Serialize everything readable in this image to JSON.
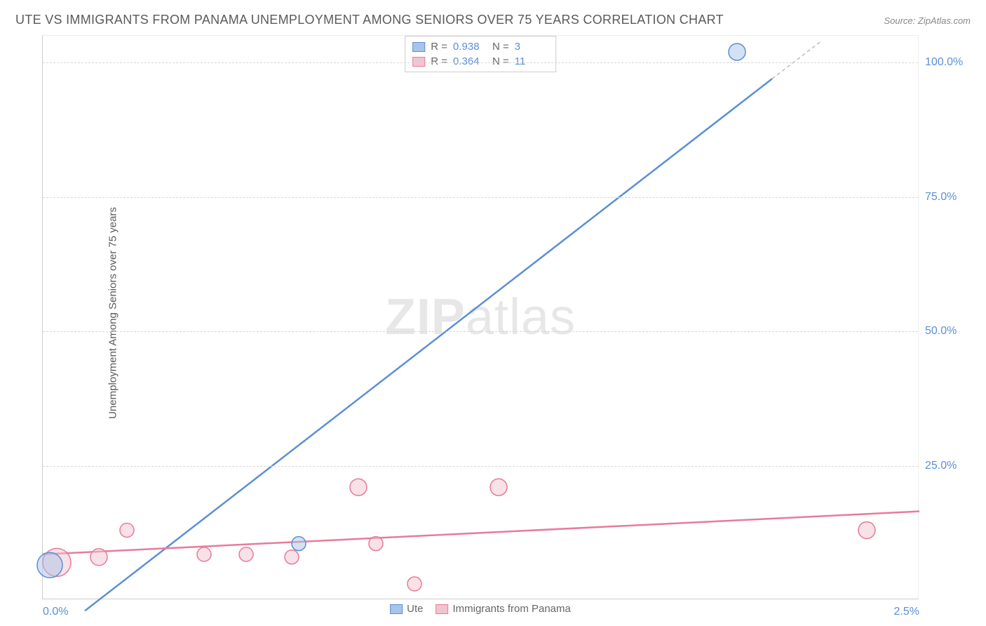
{
  "title": "UTE VS IMMIGRANTS FROM PANAMA UNEMPLOYMENT AMONG SENIORS OVER 75 YEARS CORRELATION CHART",
  "source": "Source: ZipAtlas.com",
  "ylabel": "Unemployment Among Seniors over 75 years",
  "watermark_bold": "ZIP",
  "watermark_rest": "atlas",
  "chart": {
    "type": "scatter",
    "xlim": [
      0.0,
      2.5
    ],
    "ylim": [
      0,
      105
    ],
    "ytick_step": 25,
    "ytick_labels": [
      "25.0%",
      "50.0%",
      "75.0%",
      "100.0%"
    ],
    "xtick_labels": [
      "0.0%",
      "2.5%"
    ],
    "grid_color": "#d8d8d8",
    "background_color": "#ffffff",
    "axis_color": "#cccccc",
    "tick_font_color": "#5b8fd6",
    "series": [
      {
        "name": "Ute",
        "fill": "#a9c4ea",
        "stroke": "#5b8fd6",
        "r_value": "0.938",
        "n_value": "3",
        "line": {
          "x1": 0.12,
          "y1": -2,
          "x2": 2.08,
          "y2": 97,
          "dash_from_x": 2.08,
          "dash_to_x": 2.22,
          "dash_to_y": 104
        },
        "points": [
          {
            "x": 0.02,
            "y": 6.5,
            "r": 18
          },
          {
            "x": 0.73,
            "y": 10.5,
            "r": 10
          },
          {
            "x": 1.98,
            "y": 102,
            "r": 12
          }
        ]
      },
      {
        "name": "Immigrants from Panama",
        "fill": "#f2c4cf",
        "stroke": "#e77b9a",
        "r_value": "0.364",
        "n_value": "11",
        "line": {
          "x1": 0.0,
          "y1": 8.5,
          "x2": 2.5,
          "y2": 16.5
        },
        "points": [
          {
            "x": 0.04,
            "y": 7,
            "r": 20
          },
          {
            "x": 0.16,
            "y": 8,
            "r": 12
          },
          {
            "x": 0.24,
            "y": 13,
            "r": 10
          },
          {
            "x": 0.46,
            "y": 8.5,
            "r": 10
          },
          {
            "x": 0.58,
            "y": 8.5,
            "r": 10
          },
          {
            "x": 0.71,
            "y": 8,
            "r": 10
          },
          {
            "x": 0.9,
            "y": 21,
            "r": 12
          },
          {
            "x": 0.95,
            "y": 10.5,
            "r": 10
          },
          {
            "x": 1.06,
            "y": 3,
            "r": 10
          },
          {
            "x": 1.3,
            "y": 21,
            "r": 12
          },
          {
            "x": 2.35,
            "y": 13,
            "r": 12
          }
        ]
      }
    ]
  },
  "legend_bottom": {
    "items": [
      "Ute",
      "Immigrants from Panama"
    ]
  }
}
